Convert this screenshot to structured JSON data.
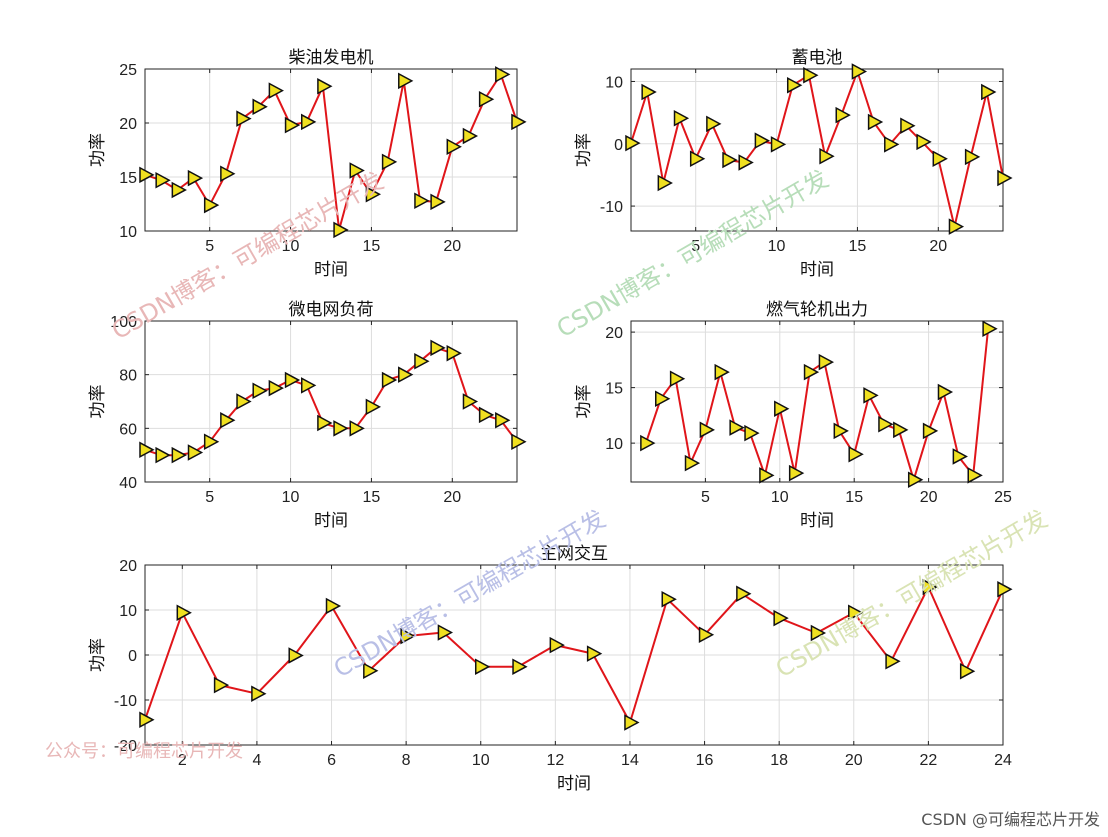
{
  "colors": {
    "line": "#e0151a",
    "marker_fill": "#f0e020",
    "marker_edge": "#111111",
    "grid": "#dddddd",
    "axis": "#222222",
    "watermark_red": "#e8b7b7",
    "watermark_green": "#b7ddb9",
    "watermark_blue": "#b9bfe6",
    "watermark_olive": "#d9e3b4",
    "footer": "#555555"
  },
  "watermarks": {
    "blog_text": "CSDN博客：可编程芯片开发",
    "wechat_text": "公众号：可编程芯片开发",
    "footer_text": "CSDN @可编程芯片开发"
  },
  "chart_data": [
    {
      "type": "line",
      "marker": "triangle-right",
      "title": "柴油发电机",
      "xlabel": "时间",
      "ylabel": "功率",
      "xlim": [
        1,
        24
      ],
      "ylim": [
        10,
        25
      ],
      "xticks": [
        5,
        10,
        15,
        20
      ],
      "yticks": [
        10,
        15,
        20,
        25
      ],
      "grid": true,
      "x": [
        1,
        2,
        3,
        4,
        5,
        6,
        7,
        8,
        9,
        10,
        11,
        12,
        13,
        14,
        15,
        16,
        17,
        18,
        19,
        20,
        21,
        22,
        23,
        24
      ],
      "y": [
        15.2,
        14.7,
        13.8,
        14.9,
        12.4,
        15.3,
        20.4,
        21.5,
        23.0,
        19.8,
        20.1,
        23.4,
        10.1,
        15.6,
        13.4,
        16.4,
        23.9,
        12.8,
        12.7,
        17.8,
        18.8,
        22.2,
        24.5,
        20.1
      ]
    },
    {
      "type": "line",
      "marker": "triangle-right",
      "title": "蓄电池",
      "xlabel": "时间",
      "ylabel": "功率",
      "xlim": [
        1,
        24
      ],
      "ylim": [
        -14,
        12
      ],
      "xticks": [
        5,
        10,
        15,
        20
      ],
      "yticks": [
        -10,
        0,
        10
      ],
      "grid": true,
      "x": [
        1,
        2,
        3,
        4,
        5,
        6,
        7,
        8,
        9,
        10,
        11,
        12,
        13,
        14,
        15,
        16,
        17,
        18,
        19,
        20,
        21,
        22,
        23,
        24
      ],
      "y": [
        0.1,
        8.3,
        -6.3,
        4.1,
        -2.4,
        3.2,
        -2.6,
        -3.0,
        0.5,
        -0.1,
        9.4,
        11.0,
        -2.0,
        4.6,
        11.6,
        3.5,
        -0.1,
        2.9,
        0.3,
        -2.4,
        -13.3,
        -2.1,
        8.3,
        -5.5
      ]
    },
    {
      "type": "line",
      "marker": "triangle-right",
      "title": "微电网负荷",
      "xlabel": "时间",
      "ylabel": "功率",
      "xlim": [
        1,
        24
      ],
      "ylim": [
        40,
        100
      ],
      "xticks": [
        5,
        10,
        15,
        20
      ],
      "yticks": [
        40,
        60,
        80,
        100
      ],
      "grid": true,
      "x": [
        1,
        2,
        3,
        4,
        5,
        6,
        7,
        8,
        9,
        10,
        11,
        12,
        13,
        14,
        15,
        16,
        17,
        18,
        19,
        20,
        21,
        22,
        23,
        24
      ],
      "y": [
        52,
        50,
        50,
        51,
        55,
        63,
        70,
        74,
        75,
        78,
        76,
        62,
        60,
        60,
        68,
        78,
        80,
        85,
        90,
        88,
        70,
        65,
        63,
        55
      ]
    },
    {
      "type": "line",
      "marker": "triangle-right",
      "title": "燃气轮机出力",
      "xlabel": "时间",
      "ylabel": "功率",
      "xlim": [
        0,
        25
      ],
      "ylim": [
        6.5,
        21
      ],
      "xticks": [
        5,
        10,
        15,
        20,
        25
      ],
      "yticks": [
        10,
        15,
        20
      ],
      "grid": true,
      "x": [
        1,
        2,
        3,
        4,
        5,
        6,
        7,
        8,
        9,
        10,
        11,
        12,
        13,
        14,
        15,
        16,
        17,
        18,
        19,
        20,
        21,
        22,
        23,
        24
      ],
      "y": [
        10.0,
        14.0,
        15.8,
        8.2,
        11.2,
        16.4,
        11.4,
        10.9,
        7.1,
        13.1,
        7.3,
        16.4,
        17.3,
        11.1,
        9.0,
        14.3,
        11.7,
        11.2,
        6.7,
        11.1,
        14.6,
        8.8,
        7.1,
        20.3
      ]
    },
    {
      "type": "line",
      "marker": "triangle-right",
      "title": "主网交互",
      "xlabel": "时间",
      "ylabel": "功率",
      "xlim": [
        1,
        24
      ],
      "ylim": [
        -20,
        20
      ],
      "xticks": [
        2,
        4,
        6,
        8,
        10,
        12,
        14,
        16,
        18,
        20,
        22,
        24
      ],
      "yticks": [
        -20,
        -10,
        0,
        10,
        20
      ],
      "grid": true,
      "x": [
        1,
        2,
        3,
        4,
        5,
        6,
        7,
        8,
        9,
        10,
        11,
        12,
        13,
        14,
        15,
        16,
        17,
        18,
        19,
        20,
        21,
        22,
        23,
        24
      ],
      "y": [
        -14.4,
        9.4,
        -6.7,
        -8.6,
        -0.1,
        10.9,
        -3.5,
        4.2,
        5.0,
        -2.6,
        -2.6,
        2.2,
        0.3,
        -15.0,
        12.4,
        4.5,
        13.6,
        8.2,
        4.9,
        9.4,
        -1.4,
        15.1,
        -3.6,
        14.6
      ]
    }
  ]
}
